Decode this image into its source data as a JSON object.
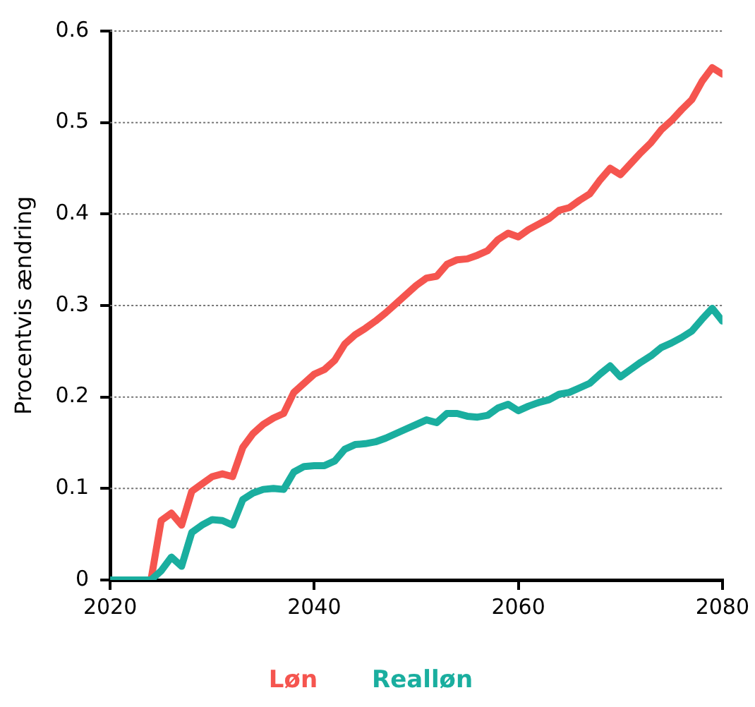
{
  "chart_data": {
    "type": "line",
    "ylabel": "Procentvis ændring",
    "x": [
      2020,
      2021,
      2022,
      2023,
      2024,
      2025,
      2026,
      2027,
      2028,
      2029,
      2030,
      2031,
      2032,
      2033,
      2034,
      2035,
      2036,
      2037,
      2038,
      2039,
      2040,
      2041,
      2042,
      2043,
      2044,
      2045,
      2046,
      2047,
      2048,
      2049,
      2050,
      2051,
      2052,
      2053,
      2054,
      2055,
      2056,
      2057,
      2058,
      2059,
      2060,
      2061,
      2062,
      2063,
      2064,
      2065,
      2066,
      2067,
      2068,
      2069,
      2070,
      2071,
      2072,
      2073,
      2074,
      2075,
      2076,
      2077,
      2078,
      2079,
      2080
    ],
    "series": [
      {
        "name": "Løn",
        "color": "#f5554f",
        "values": [
          null,
          null,
          null,
          null,
          0,
          0.065,
          0.073,
          0.06,
          0.097,
          0.105,
          0.113,
          0.116,
          0.113,
          0.145,
          0.16,
          0.17,
          0.177,
          0.182,
          0.205,
          0.215,
          0.225,
          0.23,
          0.24,
          0.258,
          0.268,
          0.275,
          0.283,
          0.292,
          0.302,
          0.312,
          0.322,
          0.33,
          0.332,
          0.345,
          0.35,
          0.351,
          0.355,
          0.36,
          0.372,
          0.379,
          0.375,
          0.383,
          0.389,
          0.395,
          0.404,
          0.407,
          0.415,
          0.422,
          0.437,
          0.45,
          0.443,
          0.455,
          0.467,
          0.478,
          0.492,
          0.502,
          0.514,
          0.525,
          0.545,
          0.56,
          0.553
        ]
      },
      {
        "name": "Realløn",
        "color": "#1aae9f",
        "values": [
          0,
          0,
          0,
          0,
          0,
          0.01,
          0.025,
          0.015,
          0.052,
          0.06,
          0.066,
          0.065,
          0.06,
          0.088,
          0.095,
          0.099,
          0.1,
          0.099,
          0.118,
          0.124,
          0.125,
          0.125,
          0.13,
          0.143,
          0.148,
          0.149,
          0.151,
          0.155,
          0.16,
          0.165,
          0.17,
          0.175,
          0.172,
          0.182,
          0.182,
          0.179,
          0.178,
          0.18,
          0.188,
          0.192,
          0.185,
          0.19,
          0.194,
          0.197,
          0.203,
          0.205,
          0.21,
          0.215,
          0.225,
          0.234,
          0.222,
          0.23,
          0.238,
          0.245,
          0.254,
          0.259,
          0.265,
          0.272,
          0.285,
          0.297,
          0.283
        ]
      }
    ],
    "xlim": [
      2020,
      2080
    ],
    "xticks": [
      2020,
      2040,
      2060,
      2080
    ],
    "ylim": [
      0,
      0.6
    ],
    "yticks": [
      0,
      0.1,
      0.2,
      0.3,
      0.4,
      0.5,
      0.6
    ],
    "grid": "y",
    "legend": "bottom",
    "marker": "none",
    "line_style": "solid"
  }
}
